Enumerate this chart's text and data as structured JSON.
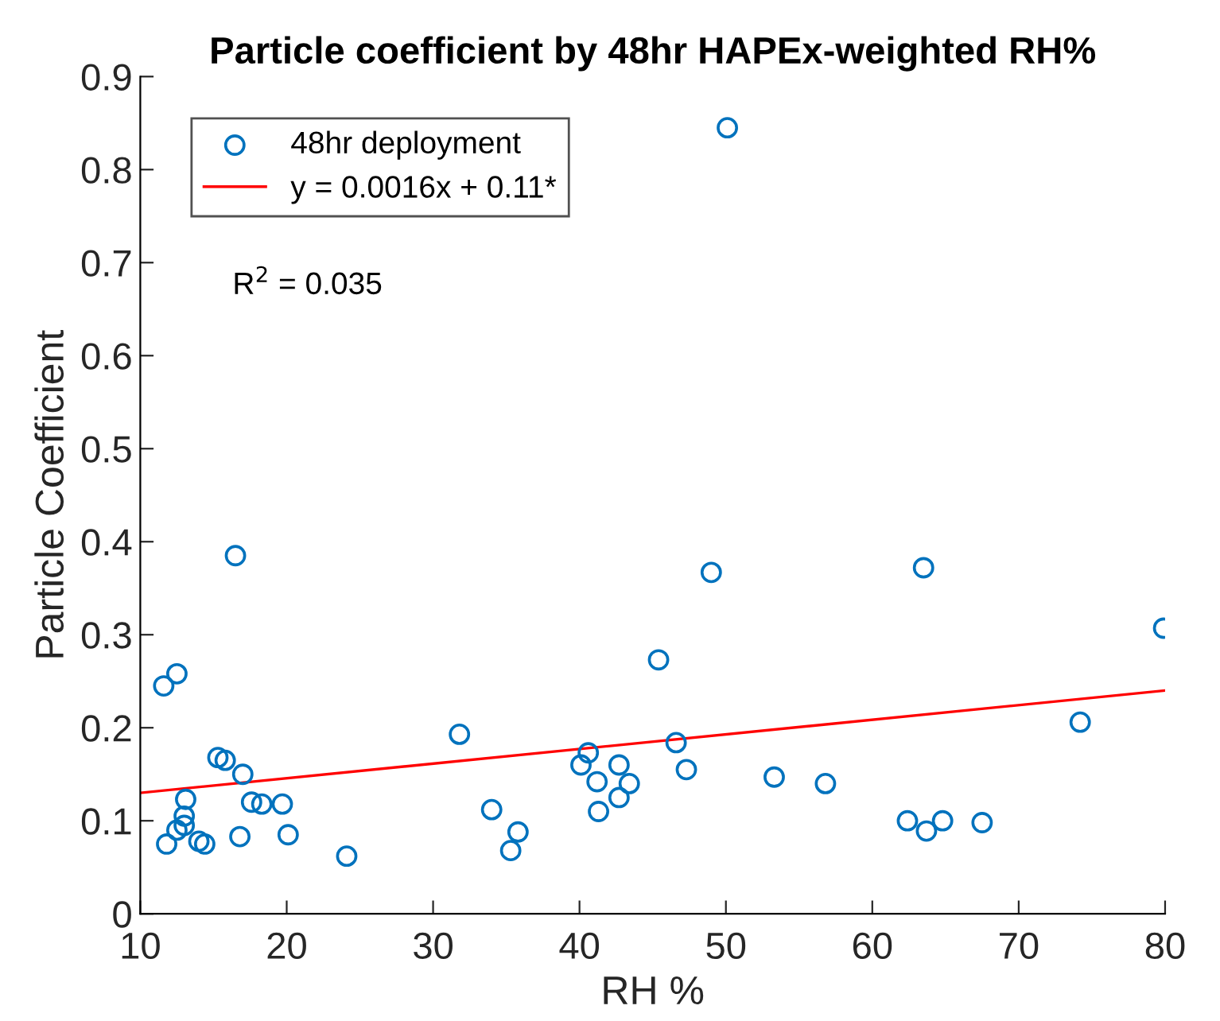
{
  "chart_data": {
    "type": "scatter",
    "title": "Particle coefficient by 48hr HAPEx-weighted RH%",
    "xlabel": "RH %",
    "ylabel": "Particle Coefficient",
    "xlim": [
      10,
      80
    ],
    "ylim": [
      0,
      0.9
    ],
    "xticks": [
      10,
      20,
      30,
      40,
      50,
      60,
      70,
      80
    ],
    "yticks": [
      0,
      0.1,
      0.2,
      0.3,
      0.4,
      0.5,
      0.6,
      0.7,
      0.8,
      0.9
    ],
    "grid": false,
    "legend": "top left",
    "annotations": [
      "R$^{2}$ = 0.035"
    ],
    "series": [
      {
        "name": "48hr deployment",
        "marker": "circle",
        "color": "#0072bd",
        "x": [
          11.6,
          12.5,
          11.8,
          12.5,
          13,
          13,
          13.1,
          14,
          14.4,
          15.3,
          15.8,
          16.5,
          16.8,
          17,
          17.6,
          18.3,
          19.7,
          20.1,
          24.1,
          31.8,
          34,
          35.3,
          35.8,
          40.1,
          40.6,
          41.2,
          41.3,
          42.7,
          42.7,
          43.4,
          45.4,
          46.6,
          47.3,
          49,
          50.1,
          53.3,
          56.8,
          62.4,
          63.5,
          63.7,
          64.8,
          67.5,
          74.2,
          79.9
        ],
        "values": [
          0.245,
          0.258,
          0.075,
          0.09,
          0.095,
          0.105,
          0.123,
          0.078,
          0.075,
          0.168,
          0.165,
          0.385,
          0.083,
          0.15,
          0.12,
          0.118,
          0.118,
          0.085,
          0.062,
          0.193,
          0.112,
          0.068,
          0.088,
          0.16,
          0.173,
          0.142,
          0.11,
          0.16,
          0.125,
          0.14,
          0.273,
          0.184,
          0.155,
          0.367,
          0.845,
          0.147,
          0.14,
          0.1,
          0.372,
          0.089,
          0.1,
          0.098,
          0.206,
          0.307
        ]
      },
      {
        "name": "y = 0.0016x + 0.11*",
        "type": "line",
        "line_style": "solid",
        "color": "#ff0000",
        "x": [
          10,
          80
        ],
        "values": [
          0.13,
          0.24
        ]
      }
    ]
  }
}
